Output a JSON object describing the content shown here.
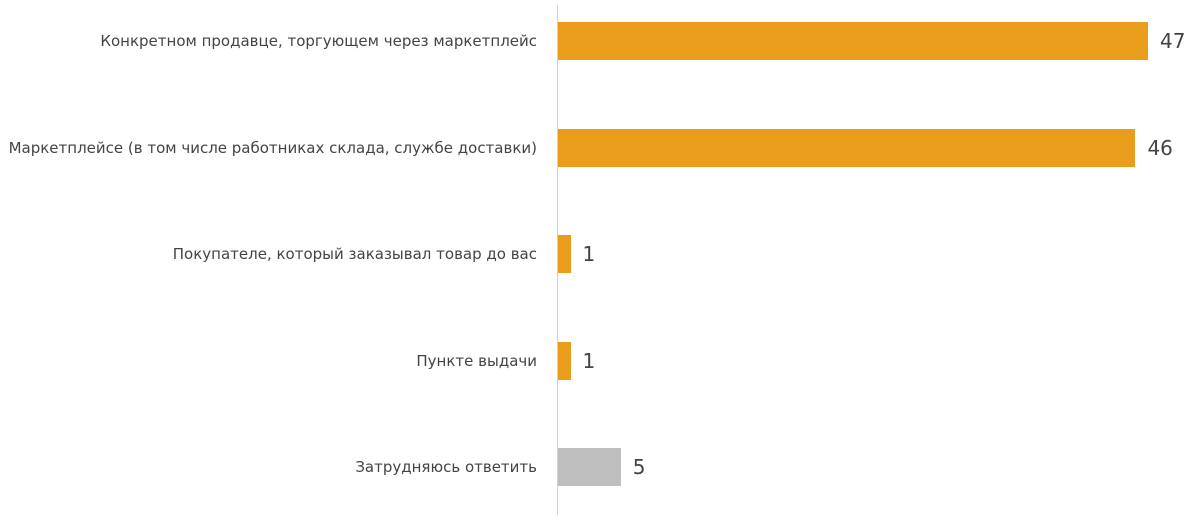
{
  "chart_data": {
    "type": "bar",
    "orientation": "horizontal",
    "categories": [
      "Конкретном продавце, торгующем через маркетплейс",
      "Маркетплейсе (в том числе работниках склада, службе доставки)",
      "Покупателе, который заказывал товар до вас",
      "Пункте выдачи",
      "Затрудняюсь ответить"
    ],
    "values": [
      47,
      46,
      1,
      1,
      5
    ],
    "colors": [
      "#e99d1b",
      "#e99d1b",
      "#e99d1b",
      "#e99d1b",
      "#bfbfbf"
    ]
  }
}
